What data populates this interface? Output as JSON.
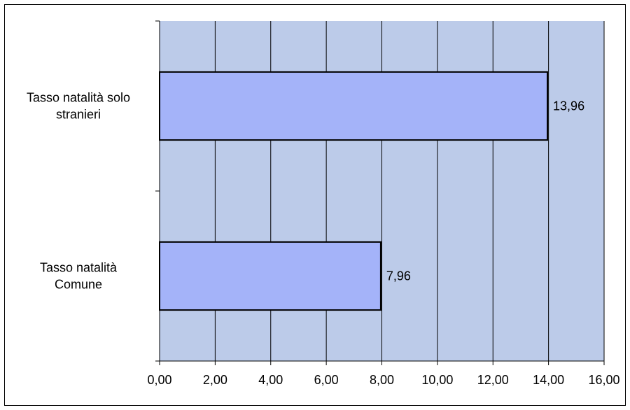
{
  "chart_data": {
    "type": "bar",
    "orientation": "horizontal",
    "categories": [
      [
        "Tasso natalità solo",
        "stranieri"
      ],
      [
        "Tasso natalità",
        "Comune"
      ]
    ],
    "values": [
      13.96,
      7.96
    ],
    "data_labels": [
      "13,96",
      "7,96"
    ],
    "xlim": [
      0,
      16
    ],
    "x_ticks": [
      "0,00",
      "2,00",
      "4,00",
      "6,00",
      "8,00",
      "10,00",
      "12,00",
      "14,00",
      "16,00"
    ],
    "grid": "vertical",
    "legend": "none",
    "colors": {
      "plot_background": "#bccbe9",
      "bar_fill": "#a4b3f9",
      "bar_stroke": "#000000",
      "grid": "#000000"
    }
  }
}
